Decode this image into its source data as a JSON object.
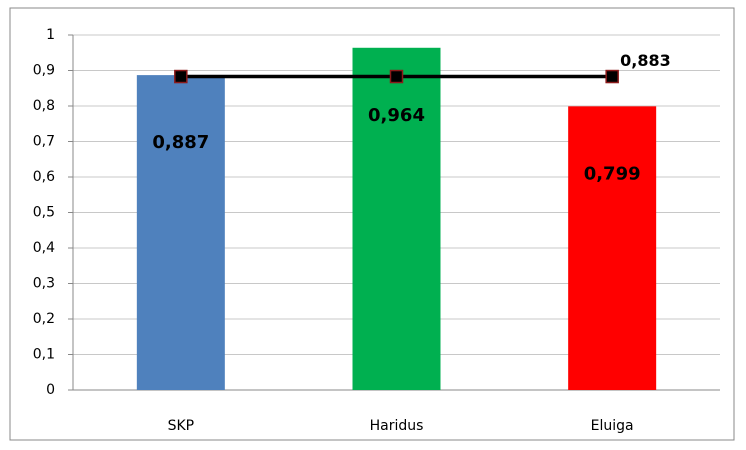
{
  "chart_data": {
    "type": "bar",
    "categories": [
      "SKP",
      "Haridus",
      "Eluiga"
    ],
    "series": [
      {
        "type": "bar",
        "values": [
          0.887,
          0.964,
          0.799
        ],
        "value_labels": [
          "0,887",
          "0,964",
          "0,799"
        ],
        "colors": [
          "#4f81bd",
          "#00b050",
          "#ff0000"
        ]
      },
      {
        "type": "line",
        "color": "#000000",
        "marker_fill": "#000000",
        "marker_edge": "#8b1a1a",
        "values": [
          0.883,
          0.883,
          0.883
        ],
        "value_labels": [
          null,
          null,
          "0,883"
        ]
      }
    ],
    "ylim": [
      0,
      1
    ],
    "yticks": [
      0,
      {
        "value": 0.1,
        "label": "0,1"
      },
      {
        "value": 0.2,
        "label": "0,2"
      },
      {
        "value": 0.3,
        "label": "0,3"
      },
      {
        "value": 0.4,
        "label": "0,4"
      },
      {
        "value": 0.5,
        "label": "0,5"
      },
      {
        "value": 0.6,
        "label": "0,6"
      },
      {
        "value": 0.7,
        "label": "0,7"
      },
      {
        "value": 0.8,
        "label": "0,8"
      },
      {
        "value": 0.9,
        "label": "0,9"
      },
      1
    ],
    "grid": true
  }
}
